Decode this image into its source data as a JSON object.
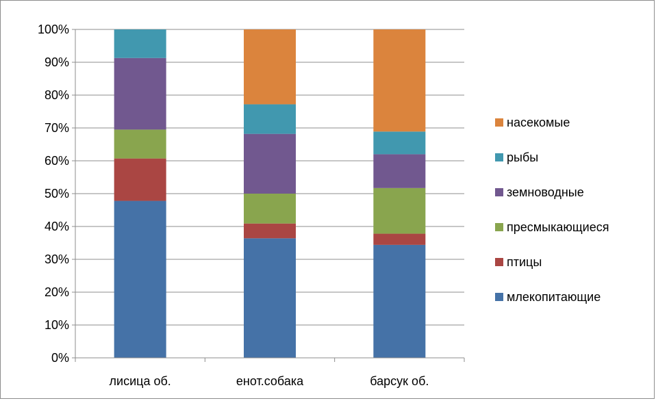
{
  "chart_data": {
    "type": "bar",
    "stacked": "percent",
    "categories": [
      "лисица об.",
      "енот.собака",
      "барсук об."
    ],
    "yticks": [
      "0%",
      "10%",
      "20%",
      "30%",
      "40%",
      "50%",
      "60%",
      "70%",
      "80%",
      "90%",
      "100%"
    ],
    "ylim": [
      0,
      100
    ],
    "grid": true,
    "legend_position": "right",
    "series": [
      {
        "name": "млекопитающие",
        "color": "#4572A7",
        "values": [
          47.8,
          36.4,
          34.4
        ]
      },
      {
        "name": "птицы",
        "color": "#AA4643",
        "values": [
          12.9,
          4.5,
          3.4
        ]
      },
      {
        "name": "пресмыкающиеся",
        "color": "#89A54E",
        "values": [
          8.8,
          9.1,
          13.9
        ]
      },
      {
        "name": "земноводные",
        "color": "#71588F",
        "values": [
          21.8,
          18.2,
          10.3
        ]
      },
      {
        "name": "рыбы",
        "color": "#4198AF",
        "values": [
          8.7,
          9.0,
          6.9
        ]
      },
      {
        "name": "насекомые",
        "color": "#DB843D",
        "values": [
          0,
          22.8,
          31.1
        ]
      }
    ]
  }
}
